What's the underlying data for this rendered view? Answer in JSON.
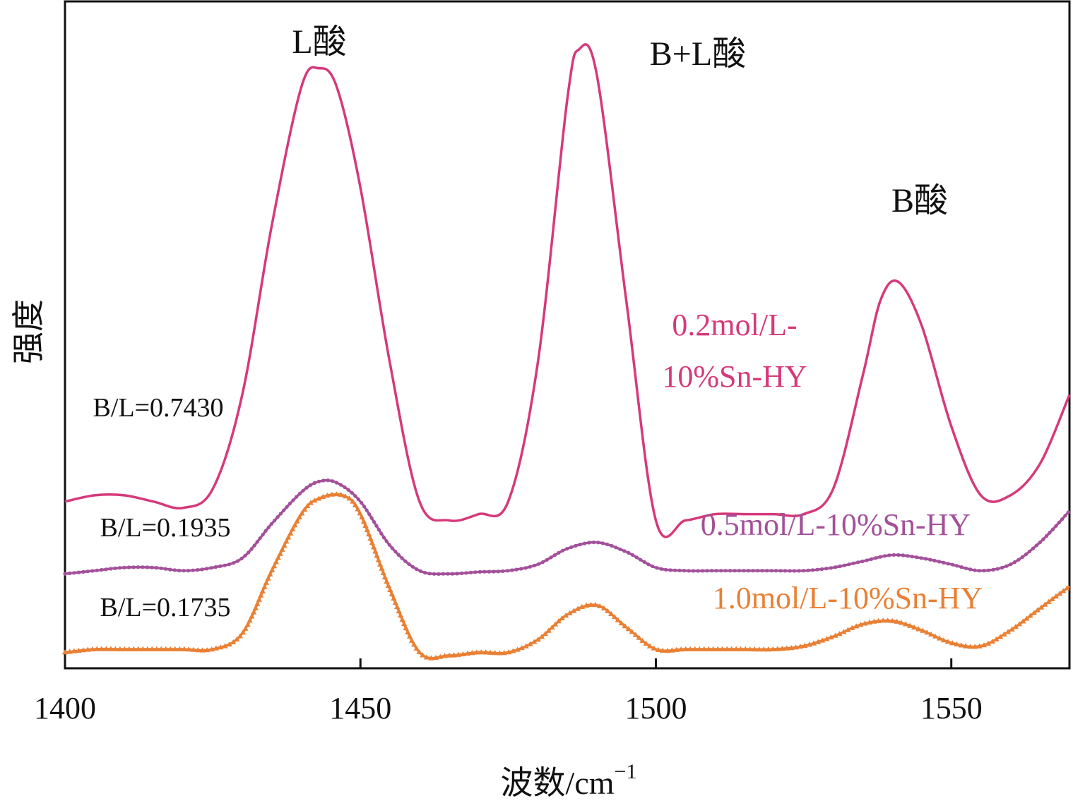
{
  "chart_data": {
    "type": "line",
    "xlabel": "波数/cm",
    "xlabel_sup": "−1",
    "ylabel": "强度",
    "xlim": [
      1400,
      1570
    ],
    "ylim": [
      0,
      1
    ],
    "x_ticks": [
      1400,
      1450,
      1500,
      1550
    ],
    "y_ticks_shown": false,
    "grid": false,
    "peak_annotations": [
      {
        "text": "L酸",
        "x": 1444
      },
      {
        "text": "B+L酸",
        "x": 1489
      },
      {
        "text": "B酸",
        "x": 1541
      }
    ],
    "series": [
      {
        "name": "0.2mol/L-10%Sn-HY",
        "label_lines": [
          "0.2mol/L-",
          "10%Sn-HY"
        ],
        "ratio_label": "B/L=0.7430",
        "color": "#d6397a",
        "marker": "none",
        "x": [
          1400,
          1405,
          1410,
          1415,
          1420,
          1425,
          1430,
          1435,
          1440,
          1443,
          1446,
          1450,
          1455,
          1460,
          1465,
          1470,
          1475,
          1480,
          1485,
          1487,
          1490,
          1495,
          1500,
          1505,
          1510,
          1515,
          1520,
          1525,
          1530,
          1535,
          1538,
          1541,
          1545,
          1550,
          1555,
          1560,
          1565,
          1570
        ],
        "y": [
          0.28,
          0.29,
          0.29,
          0.28,
          0.27,
          0.3,
          0.45,
          0.72,
          0.94,
          0.97,
          0.94,
          0.78,
          0.5,
          0.28,
          0.25,
          0.26,
          0.28,
          0.5,
          0.92,
          1.0,
          0.96,
          0.6,
          0.25,
          0.25,
          0.26,
          0.26,
          0.26,
          0.26,
          0.3,
          0.48,
          0.6,
          0.63,
          0.56,
          0.4,
          0.29,
          0.29,
          0.34,
          0.45
        ]
      },
      {
        "name": "0.5mol/L-10%Sn-HY",
        "ratio_label": "B/L=0.1935",
        "color": "#a3509a",
        "marker": "dot",
        "x": [
          1400,
          1405,
          1410,
          1415,
          1420,
          1425,
          1430,
          1435,
          1440,
          1443,
          1446,
          1450,
          1455,
          1460,
          1465,
          1470,
          1475,
          1480,
          1485,
          1490,
          1495,
          1500,
          1505,
          1510,
          1515,
          1520,
          1525,
          1530,
          1535,
          1540,
          1545,
          1550,
          1555,
          1560,
          1565,
          1570
        ],
        "y": [
          0.165,
          0.17,
          0.175,
          0.175,
          0.17,
          0.175,
          0.19,
          0.245,
          0.295,
          0.312,
          0.31,
          0.28,
          0.21,
          0.17,
          0.165,
          0.168,
          0.17,
          0.18,
          0.205,
          0.215,
          0.2,
          0.175,
          0.17,
          0.17,
          0.17,
          0.17,
          0.17,
          0.175,
          0.185,
          0.195,
          0.19,
          0.18,
          0.17,
          0.18,
          0.215,
          0.265
        ]
      },
      {
        "name": "1.0mol/L-10%Sn-HY",
        "ratio_label": "B/L=0.1735",
        "color": "#e98034",
        "marker": "triangle",
        "x": [
          1400,
          1405,
          1410,
          1415,
          1420,
          1425,
          1430,
          1435,
          1440,
          1443,
          1447,
          1450,
          1455,
          1460,
          1465,
          1470,
          1475,
          1480,
          1485,
          1490,
          1495,
          1500,
          1505,
          1510,
          1515,
          1520,
          1525,
          1530,
          1535,
          1540,
          1545,
          1550,
          1555,
          1560,
          1565,
          1570
        ],
        "y": [
          0.04,
          0.045,
          0.045,
          0.045,
          0.045,
          0.045,
          0.07,
          0.17,
          0.26,
          0.285,
          0.29,
          0.26,
          0.14,
          0.04,
          0.035,
          0.04,
          0.04,
          0.06,
          0.1,
          0.115,
          0.08,
          0.045,
          0.045,
          0.045,
          0.045,
          0.045,
          0.05,
          0.065,
          0.085,
          0.09,
          0.075,
          0.055,
          0.05,
          0.075,
          0.11,
          0.145
        ]
      }
    ]
  }
}
